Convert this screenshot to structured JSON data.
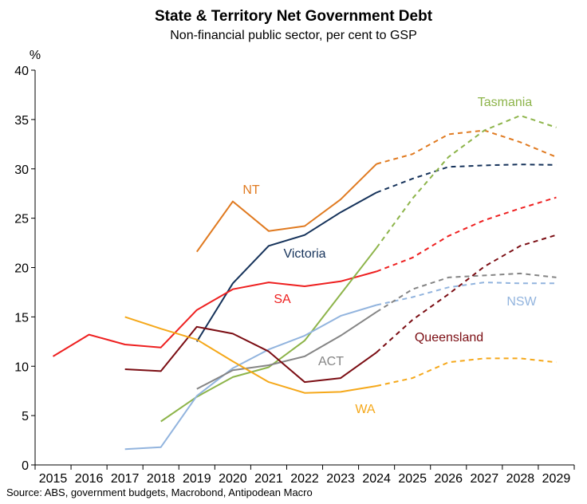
{
  "chart_data": {
    "type": "line",
    "title": "State & Territory Net Government Debt",
    "subtitle": "Non-financial public sector, per cent to GSP",
    "ylabel": "%",
    "ylim": [
      0,
      40
    ],
    "yticks": [
      "0",
      "5",
      "10",
      "15",
      "20",
      "25",
      "30",
      "35",
      "40"
    ],
    "xlim": [
      2015,
      2029
    ],
    "xticks": [
      "2015",
      "2016",
      "2017",
      "2018",
      "2019",
      "2020",
      "2021",
      "2022",
      "2023",
      "2024",
      "2025",
      "2026",
      "2027",
      "2028",
      "2029"
    ],
    "grid": false,
    "source": "Source: ABS, government budgets, Macrobond, Antipodean Macro",
    "series": [
      {
        "name": "NT",
        "color": "#e07a20",
        "actual": [
          [
            2019,
            21.6
          ],
          [
            2020,
            26.7
          ],
          [
            2021,
            23.7
          ],
          [
            2022,
            24.2
          ],
          [
            2023,
            26.9
          ],
          [
            2024,
            30.5
          ]
        ],
        "forecast": [
          [
            2024,
            30.5
          ],
          [
            2025,
            31.5
          ],
          [
            2026,
            33.5
          ],
          [
            2027,
            33.9
          ],
          [
            2028,
            32.7
          ],
          [
            2029,
            31.2
          ]
        ]
      },
      {
        "name": "Victoria",
        "color": "#15325a",
        "actual": [
          [
            2019,
            12.5
          ],
          [
            2020,
            18.4
          ],
          [
            2021,
            22.2
          ],
          [
            2022,
            23.3
          ],
          [
            2023,
            25.6
          ],
          [
            2024,
            27.6
          ]
        ],
        "forecast": [
          [
            2024,
            27.6
          ],
          [
            2025,
            29.0
          ],
          [
            2026,
            30.2
          ],
          [
            2027,
            30.35
          ],
          [
            2028,
            30.45
          ],
          [
            2029,
            30.4
          ]
        ]
      },
      {
        "name": "SA",
        "color": "#ee2020",
        "actual": [
          [
            2015,
            11.0
          ],
          [
            2016,
            13.2
          ],
          [
            2017,
            12.2
          ],
          [
            2018,
            11.9
          ],
          [
            2019,
            15.7
          ],
          [
            2020,
            17.8
          ],
          [
            2021,
            18.5
          ],
          [
            2022,
            18.1
          ],
          [
            2023,
            18.6
          ],
          [
            2024,
            19.6
          ]
        ],
        "forecast": [
          [
            2024,
            19.6
          ],
          [
            2025,
            21.0
          ],
          [
            2026,
            23.2
          ],
          [
            2027,
            24.8
          ],
          [
            2028,
            26.0
          ],
          [
            2029,
            27.1
          ]
        ]
      },
      {
        "name": "Tasmania",
        "color": "#8db44a",
        "actual": [
          [
            2018,
            4.4
          ],
          [
            2019,
            6.9
          ],
          [
            2020,
            8.9
          ],
          [
            2021,
            9.9
          ],
          [
            2022,
            12.6
          ],
          [
            2023,
            17.3
          ],
          [
            2024,
            22.0
          ]
        ],
        "forecast": [
          [
            2024,
            22.0
          ],
          [
            2025,
            27.0
          ],
          [
            2026,
            31.2
          ],
          [
            2027,
            33.9
          ],
          [
            2028,
            35.4
          ],
          [
            2029,
            34.2
          ]
        ]
      },
      {
        "name": "NSW",
        "color": "#92b4de",
        "actual": [
          [
            2017,
            1.6
          ],
          [
            2018,
            1.8
          ],
          [
            2019,
            7.0
          ],
          [
            2020,
            9.8
          ],
          [
            2021,
            11.7
          ],
          [
            2022,
            13.1
          ],
          [
            2023,
            15.1
          ],
          [
            2024,
            16.2
          ]
        ],
        "forecast": [
          [
            2024,
            16.2
          ],
          [
            2025,
            17.0
          ],
          [
            2026,
            18.0
          ],
          [
            2027,
            18.5
          ],
          [
            2028,
            18.4
          ],
          [
            2029,
            18.4
          ]
        ]
      },
      {
        "name": "ACT",
        "color": "#858585",
        "actual": [
          [
            2019,
            7.7
          ],
          [
            2020,
            9.6
          ],
          [
            2021,
            10.1
          ],
          [
            2022,
            11.0
          ],
          [
            2023,
            13.1
          ],
          [
            2024,
            15.5
          ]
        ],
        "forecast": [
          [
            2024,
            15.5
          ],
          [
            2025,
            17.8
          ],
          [
            2026,
            19.0
          ],
          [
            2027,
            19.2
          ],
          [
            2028,
            19.4
          ],
          [
            2029,
            19.0
          ]
        ]
      },
      {
        "name": "Queensland",
        "color": "#7b0d13",
        "actual": [
          [
            2017,
            9.7
          ],
          [
            2018,
            9.5
          ],
          [
            2019,
            14.0
          ],
          [
            2020,
            13.3
          ],
          [
            2021,
            11.5
          ],
          [
            2022,
            8.4
          ],
          [
            2023,
            8.8
          ],
          [
            2024,
            11.4
          ]
        ],
        "forecast": [
          [
            2024,
            11.4
          ],
          [
            2025,
            14.7
          ],
          [
            2026,
            17.3
          ],
          [
            2027,
            20.1
          ],
          [
            2028,
            22.2
          ],
          [
            2029,
            23.3
          ]
        ]
      },
      {
        "name": "WA",
        "color": "#f5a81a",
        "actual": [
          [
            2017,
            15.0
          ],
          [
            2018,
            13.8
          ],
          [
            2019,
            12.7
          ],
          [
            2020,
            10.5
          ],
          [
            2021,
            8.4
          ],
          [
            2022,
            7.3
          ],
          [
            2023,
            7.4
          ],
          [
            2024,
            8.0
          ]
        ],
        "forecast": [
          [
            2024,
            8.0
          ],
          [
            2025,
            8.8
          ],
          [
            2026,
            10.4
          ],
          [
            2027,
            10.8
          ],
          [
            2028,
            10.8
          ],
          [
            2029,
            10.4
          ]
        ]
      }
    ]
  }
}
